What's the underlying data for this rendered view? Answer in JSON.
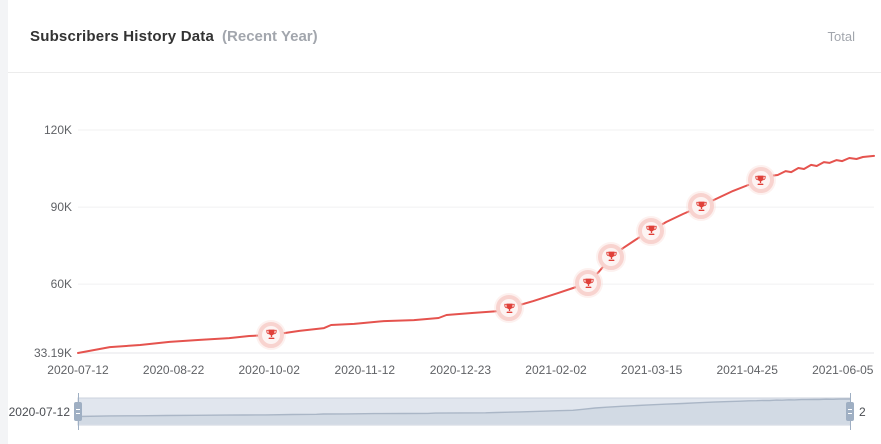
{
  "header": {
    "title": "Subscribers History Data",
    "subtitle": "(Recent Year)",
    "legend": "Total"
  },
  "colors": {
    "page_bg": "#f3f4f6",
    "divider": "#ececec",
    "title_color": "#333333",
    "muted_color": "#a2a6ad",
    "axis_label": "#606266",
    "grid_line": "#f0f1f2",
    "axis_line": "#e4e6ea",
    "accent_line": "#e5534e",
    "trophy_red": "#e0413a",
    "marker_halo": "#f8d3cf",
    "marker_inner": "#fdf4f3",
    "dz_track_bg": "#e1e6ee",
    "dz_track_border": "#ccd3de",
    "dz_shadow_line": "#aab6c6",
    "dz_shadow_fill": "#d2dae4",
    "dz_handle": "#9fafc3",
    "dz_label_color": "#4a4d52"
  },
  "chart_data": {
    "type": "line",
    "title": "Subscribers History Data (Recent Year)",
    "series_name": "Total",
    "legend_position": "top-right",
    "grid": "horizontal gridlines only",
    "x_axis": {
      "tick_labels": [
        "2020-07-12",
        "2020-08-22",
        "2020-10-02",
        "2020-11-12",
        "2020-12-23",
        "2021-02-02",
        "2021-03-15",
        "2021-04-25",
        "2021-06-05"
      ]
    },
    "y_axis": {
      "min_value": 33190,
      "max_value": 120000,
      "ticks": [
        {
          "label": "120K",
          "value": 120000
        },
        {
          "label": "90K",
          "value": 90000
        },
        {
          "label": "60K",
          "value": 60000
        },
        {
          "label": "33.19K",
          "value": 33190
        }
      ]
    },
    "values_at_ticks": [
      33190,
      37500,
      40300,
      45300,
      48400,
      56400,
      80600,
      98200,
      107500
    ],
    "points": [
      [
        0,
        33190
      ],
      [
        0.04,
        35500
      ],
      [
        0.078,
        36300
      ],
      [
        0.115,
        37500
      ],
      [
        0.153,
        38300
      ],
      [
        0.19,
        39000
      ],
      [
        0.215,
        39800
      ],
      [
        0.243,
        40200
      ],
      [
        0.278,
        41800
      ],
      [
        0.309,
        42900
      ],
      [
        0.318,
        44100
      ],
      [
        0.347,
        44500
      ],
      [
        0.384,
        45600
      ],
      [
        0.422,
        46000
      ],
      [
        0.453,
        46800
      ],
      [
        0.463,
        48000
      ],
      [
        0.497,
        48800
      ],
      [
        0.528,
        49500
      ],
      [
        0.542,
        50700
      ],
      [
        0.572,
        53400
      ],
      [
        0.603,
        56500
      ],
      [
        0.622,
        58500
      ],
      [
        0.641,
        60400
      ],
      [
        0.654,
        64700
      ],
      [
        0.67,
        70600
      ],
      [
        0.685,
        74100
      ],
      [
        0.704,
        78000
      ],
      [
        0.72,
        80700
      ],
      [
        0.739,
        84200
      ],
      [
        0.76,
        87300
      ],
      [
        0.783,
        90400
      ],
      [
        0.801,
        93100
      ],
      [
        0.823,
        96300
      ],
      [
        0.842,
        98600
      ],
      [
        0.858,
        100500
      ],
      [
        0.869,
        102100
      ],
      [
        0.879,
        102500
      ],
      [
        0.889,
        104000
      ],
      [
        0.896,
        103600
      ],
      [
        0.905,
        105200
      ],
      [
        0.912,
        104800
      ],
      [
        0.921,
        106400
      ],
      [
        0.928,
        106000
      ],
      [
        0.937,
        107500
      ],
      [
        0.944,
        107200
      ],
      [
        0.953,
        108300
      ],
      [
        0.96,
        107900
      ],
      [
        0.969,
        109100
      ],
      [
        0.978,
        108700
      ],
      [
        0.986,
        109500
      ],
      [
        1,
        109900
      ]
    ],
    "milestones": [
      {
        "frac": 0.243,
        "subscribers": 40200
      },
      {
        "frac": 0.542,
        "subscribers": 50700
      },
      {
        "frac": 0.641,
        "subscribers": 60400
      },
      {
        "frac": 0.67,
        "subscribers": 70600
      },
      {
        "frac": 0.72,
        "subscribers": 80700
      },
      {
        "frac": 0.783,
        "subscribers": 90400
      },
      {
        "frac": 0.858,
        "subscribers": 100500
      }
    ],
    "datazoom": {
      "left_label": "2020-07-12",
      "right_label": "2",
      "shadow_min": 0,
      "shadow_max": 110000
    }
  }
}
